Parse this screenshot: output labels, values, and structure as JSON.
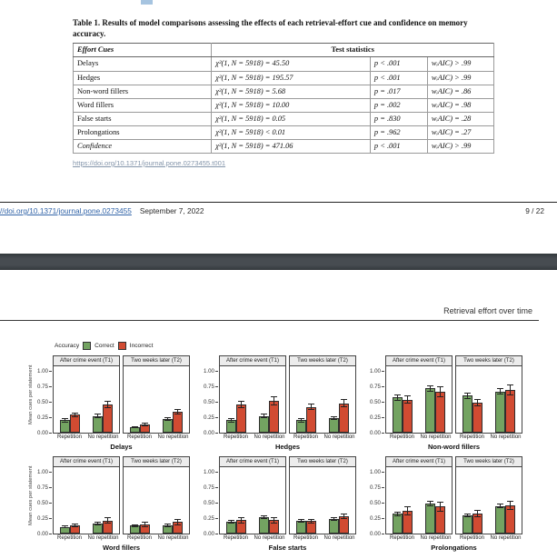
{
  "page1": {
    "table": {
      "title": "Table 1.  Results of model comparisons assessing the effects of each retrieval-effort cue and confidence on memory accuracy.",
      "col1_header": "Effort Cues",
      "col2_header": "Test statistics",
      "rows": [
        {
          "cue": "Delays",
          "chi": "χ²(1, N = 5918) = 45.50",
          "p": "p < .001",
          "w": "wᵢAIC) > .99",
          "italic": false
        },
        {
          "cue": "Hedges",
          "chi": "χ²(1, N = 5918) = 195.57",
          "p": "p < .001",
          "w": "wᵢAIC) > .99",
          "italic": false
        },
        {
          "cue": "Non-word fillers",
          "chi": "χ²(1, N = 5918) = 5.68",
          "p": "p = .017",
          "w": "wᵢAIC) = .86",
          "italic": false
        },
        {
          "cue": "Word fillers",
          "chi": "χ²(1, N = 5918) = 10.00",
          "p": "p = .002",
          "w": "wᵢAIC) = .98",
          "italic": false
        },
        {
          "cue": "False starts",
          "chi": "χ²(1, N = 5918) = 0.05",
          "p": "p = .830",
          "w": "wᵢAIC) = .28",
          "italic": false
        },
        {
          "cue": "Prolongations",
          "chi": "χ²(1, N = 5918) < 0.01",
          "p": "p = .962",
          "w": "wᵢAIC) = .27",
          "italic": false
        },
        {
          "cue": "Confidence",
          "chi": "χ²(1, N = 5918) = 471.06",
          "p": "p < .001",
          "w": "wᵢAIC) > .99",
          "italic": true
        }
      ],
      "doi": "https://doi.org/10.1371/journal.pone.0273455.t001"
    },
    "footer": {
      "doi_link": "//doi.org/10.1371/journal.pone.0273455",
      "date": "September 7, 2022",
      "page": "9 / 22"
    }
  },
  "page2": {
    "running_head": "Retrieval effort over time"
  },
  "chart_data": {
    "type": "bar",
    "ylabel": "Mean cues per statement",
    "yticks": [
      0,
      0.25,
      0.5,
      0.75,
      1
    ],
    "ylim": [
      0,
      1.08
    ],
    "grid": false,
    "legend": {
      "title": "Accuracy",
      "position": "top-left",
      "entries": [
        {
          "label": "Correct",
          "color": "#73a361"
        },
        {
          "label": "Incorrect",
          "color": "#d14b32"
        }
      ]
    },
    "facet_labels": [
      "After crime event (T1)",
      "Two weeks later (T2)"
    ],
    "categories": [
      "Repetition",
      "No repetition"
    ],
    "panels": [
      {
        "title": "Delays",
        "facets": [
          {
            "label": "After crime event (T1)",
            "bars": [
              {
                "category": "Repetition",
                "correct": 0.2,
                "correct_err": 0.03,
                "incorrect": 0.29,
                "incorrect_err": 0.04
              },
              {
                "category": "No repetition",
                "correct": 0.27,
                "correct_err": 0.04,
                "incorrect": 0.46,
                "incorrect_err": 0.06
              }
            ]
          },
          {
            "label": "Two weeks later (T2)",
            "bars": [
              {
                "category": "Repetition",
                "correct": 0.09,
                "correct_err": 0.02,
                "incorrect": 0.13,
                "incorrect_err": 0.03
              },
              {
                "category": "No repetition",
                "correct": 0.22,
                "correct_err": 0.03,
                "incorrect": 0.34,
                "incorrect_err": 0.05
              }
            ]
          }
        ]
      },
      {
        "title": "Hedges",
        "facets": [
          {
            "label": "After crime event (T1)",
            "bars": [
              {
                "category": "Repetition",
                "correct": 0.2,
                "correct_err": 0.03,
                "incorrect": 0.46,
                "incorrect_err": 0.06
              },
              {
                "category": "No repetition",
                "correct": 0.27,
                "correct_err": 0.04,
                "incorrect": 0.52,
                "incorrect_err": 0.07
              }
            ]
          },
          {
            "label": "Two weeks later (T2)",
            "bars": [
              {
                "category": "Repetition",
                "correct": 0.2,
                "correct_err": 0.03,
                "incorrect": 0.42,
                "incorrect_err": 0.05
              },
              {
                "category": "No repetition",
                "correct": 0.23,
                "correct_err": 0.03,
                "incorrect": 0.48,
                "incorrect_err": 0.07
              }
            ]
          }
        ]
      },
      {
        "title": "Non-word fillers",
        "facets": [
          {
            "label": "After crime event (T1)",
            "bars": [
              {
                "category": "Repetition",
                "correct": 0.57,
                "correct_err": 0.05,
                "incorrect": 0.54,
                "incorrect_err": 0.07
              },
              {
                "category": "No repetition",
                "correct": 0.72,
                "correct_err": 0.05,
                "incorrect": 0.66,
                "incorrect_err": 0.09
              }
            ]
          },
          {
            "label": "Two weeks later (T2)",
            "bars": [
              {
                "category": "Repetition",
                "correct": 0.6,
                "correct_err": 0.05,
                "incorrect": 0.49,
                "incorrect_err": 0.06
              },
              {
                "category": "No repetition",
                "correct": 0.67,
                "correct_err": 0.05,
                "incorrect": 0.69,
                "incorrect_err": 0.09
              }
            ]
          }
        ]
      },
      {
        "title": "Word fillers",
        "facets": [
          {
            "label": "After crime event (T1)",
            "bars": [
              {
                "category": "Repetition",
                "correct": 0.11,
                "correct_err": 0.02,
                "incorrect": 0.14,
                "incorrect_err": 0.03
              },
              {
                "category": "No repetition",
                "correct": 0.16,
                "correct_err": 0.03,
                "incorrect": 0.21,
                "incorrect_err": 0.05
              }
            ]
          },
          {
            "label": "Two weeks later (T2)",
            "bars": [
              {
                "category": "Repetition",
                "correct": 0.13,
                "correct_err": 0.02,
                "incorrect": 0.15,
                "incorrect_err": 0.04
              },
              {
                "category": "No repetition",
                "correct": 0.14,
                "correct_err": 0.03,
                "incorrect": 0.19,
                "incorrect_err": 0.05
              }
            ]
          }
        ]
      },
      {
        "title": "False starts",
        "facets": [
          {
            "label": "After crime event (T1)",
            "bars": [
              {
                "category": "Repetition",
                "correct": 0.19,
                "correct_err": 0.03,
                "incorrect": 0.22,
                "incorrect_err": 0.05
              },
              {
                "category": "No repetition",
                "correct": 0.27,
                "correct_err": 0.03,
                "incorrect": 0.22,
                "incorrect_err": 0.05
              }
            ]
          },
          {
            "label": "Two weeks later (T2)",
            "bars": [
              {
                "category": "Repetition",
                "correct": 0.21,
                "correct_err": 0.03,
                "incorrect": 0.2,
                "incorrect_err": 0.04
              },
              {
                "category": "No repetition",
                "correct": 0.24,
                "correct_err": 0.03,
                "incorrect": 0.28,
                "incorrect_err": 0.05
              }
            ]
          }
        ]
      },
      {
        "title": "Prolongations",
        "facets": [
          {
            "label": "After crime event (T1)",
            "bars": [
              {
                "category": "Repetition",
                "correct": 0.32,
                "correct_err": 0.04,
                "incorrect": 0.37,
                "incorrect_err": 0.07
              },
              {
                "category": "No repetition",
                "correct": 0.49,
                "correct_err": 0.04,
                "incorrect": 0.44,
                "incorrect_err": 0.08
              }
            ]
          },
          {
            "label": "Two weeks later (T2)",
            "bars": [
              {
                "category": "Repetition",
                "correct": 0.29,
                "correct_err": 0.03,
                "incorrect": 0.32,
                "incorrect_err": 0.06
              },
              {
                "category": "No repetition",
                "correct": 0.45,
                "correct_err": 0.04,
                "incorrect": 0.46,
                "incorrect_err": 0.07
              }
            ]
          }
        ]
      }
    ]
  }
}
